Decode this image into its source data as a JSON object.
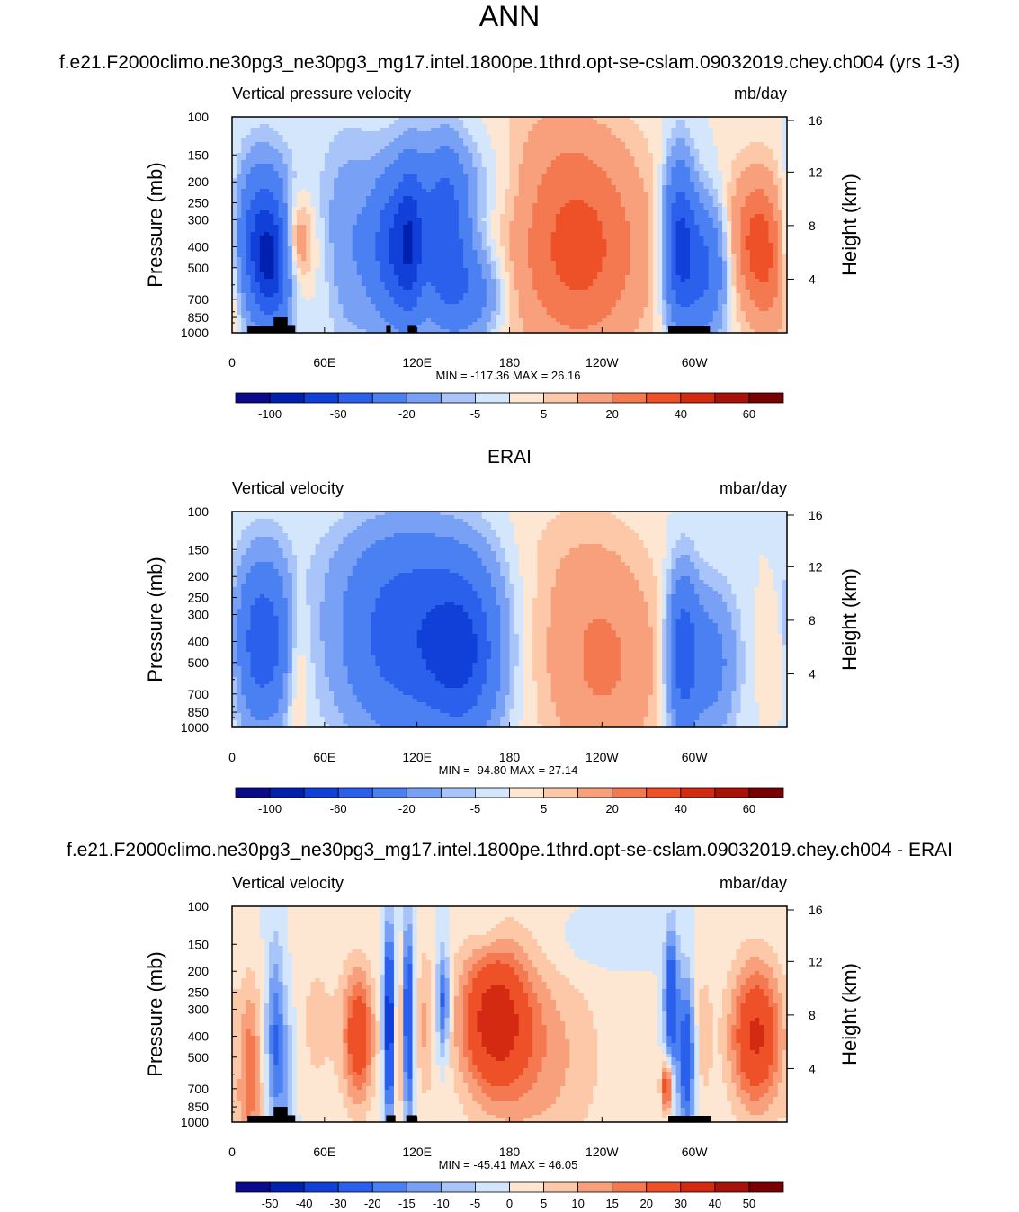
{
  "page_title": "ANN",
  "case_title": "f.e21.F2000climo.ne30pg3_ne30pg3_mg17.intel.1800pe.1thrd.opt-se-cslam.09032019.chey.ch004 (yrs 1-3)",
  "colors": {
    "cmap": [
      "#0a0a8a",
      "#0020b0",
      "#1040d8",
      "#2a60ec",
      "#4a80f2",
      "#78a0f4",
      "#a8c4f8",
      "#d4e6fb",
      "#fde6d2",
      "#fcc8a8",
      "#f8a07c",
      "#f47850",
      "#ee5028",
      "#d42a12",
      "#a81208",
      "#780000"
    ],
    "land": "#000000"
  },
  "chart_data": [
    {
      "type": "heatmap",
      "name": "model",
      "left_title": "Vertical pressure velocity",
      "units": "mb/day",
      "ylabel": "Pressure (mb)",
      "ylabel_right": "Height (km)",
      "x_ticks": [
        "0",
        "60E",
        "120E",
        "180",
        "120W",
        "60W"
      ],
      "x_tick_values": [
        0,
        60,
        120,
        180,
        240,
        300
      ],
      "xlim": [
        0,
        360
      ],
      "y_ticks": [
        "100",
        "150",
        "200",
        "250",
        "300",
        "400",
        "500",
        "700",
        "850",
        "1000"
      ],
      "y_tick_values": [
        100,
        150,
        200,
        250,
        300,
        400,
        500,
        700,
        850,
        1000
      ],
      "ylim": [
        100,
        1000
      ],
      "y_scale": "log",
      "height_ticks": [
        "16",
        "12",
        "8",
        "4"
      ],
      "height_tick_values": [
        16,
        12,
        8,
        4
      ],
      "min_label": "MIN = -117.36",
      "max_label": "MAX =  26.16",
      "colorbar_labels": [
        "-100",
        "-60",
        "-20",
        "-5",
        "5",
        "20",
        "40",
        "60"
      ],
      "colorbar_levels": [
        -100,
        -80,
        -60,
        -40,
        -20,
        -10,
        -5,
        0,
        5,
        10,
        20,
        30,
        40,
        50,
        60
      ],
      "features": [
        {
          "lon": 20,
          "plev": 380,
          "amp": -65,
          "sx": 13,
          "sy": 0.55
        },
        {
          "lon": 27,
          "plev": 500,
          "amp": -40,
          "sx": 8,
          "sy": 0.4
        },
        {
          "lon": 40,
          "plev": 380,
          "amp": 32,
          "sx": 8,
          "sy": 0.35
        },
        {
          "lon": 62,
          "plev": 500,
          "amp": 8,
          "sx": 12,
          "sy": 0.6
        },
        {
          "lon": 75,
          "plev": 400,
          "amp": -22,
          "sx": 15,
          "sy": 0.75
        },
        {
          "lon": 105,
          "plev": 400,
          "amp": -55,
          "sx": 10,
          "sy": 0.55
        },
        {
          "lon": 116,
          "plev": 380,
          "amp": -45,
          "sx": 6,
          "sy": 0.6
        },
        {
          "lon": 137,
          "plev": 350,
          "amp": -55,
          "sx": 11,
          "sy": 0.6
        },
        {
          "lon": 155,
          "plev": 650,
          "amp": -30,
          "sx": 14,
          "sy": 0.35
        },
        {
          "lon": 158,
          "plev": 200,
          "amp": -10,
          "sx": 25,
          "sy": 0.4
        },
        {
          "lon": 225,
          "plev": 420,
          "amp": 34,
          "sx": 32,
          "sy": 0.8
        },
        {
          "lon": 205,
          "plev": 150,
          "amp": 7,
          "sx": 30,
          "sy": 0.5
        },
        {
          "lon": 290,
          "plev": 380,
          "amp": -60,
          "sx": 7,
          "sy": 0.6
        },
        {
          "lon": 306,
          "plev": 500,
          "amp": -45,
          "sx": 11,
          "sy": 0.5
        },
        {
          "lon": 340,
          "plev": 380,
          "amp": 32,
          "sx": 14,
          "sy": 0.55
        },
        {
          "lon": 352,
          "plev": 600,
          "amp": 12,
          "sx": 10,
          "sy": 0.6
        }
      ],
      "land": [
        {
          "x0": 10,
          "x1": 30,
          "p0": 935,
          "p1": 1000
        },
        {
          "x0": 27,
          "x1": 36,
          "p0": 850,
          "p1": 1000
        },
        {
          "x0": 33,
          "x1": 41,
          "p0": 930,
          "p1": 1000
        },
        {
          "x0": 100,
          "x1": 103,
          "p0": 930,
          "p1": 1000
        },
        {
          "x0": 114,
          "x1": 119,
          "p0": 930,
          "p1": 1000
        },
        {
          "x0": 283,
          "x1": 310,
          "p0": 935,
          "p1": 1000
        }
      ]
    },
    {
      "type": "heatmap",
      "name": "obs",
      "title": "ERAI",
      "left_title": "Vertical velocity",
      "units": "mbar/day",
      "ylabel": "Pressure (mb)",
      "ylabel_right": "Height (km)",
      "x_ticks": [
        "0",
        "60E",
        "120E",
        "180",
        "120W",
        "60W"
      ],
      "x_tick_values": [
        0,
        60,
        120,
        180,
        240,
        300
      ],
      "xlim": [
        0,
        360
      ],
      "y_ticks": [
        "100",
        "150",
        "200",
        "250",
        "300",
        "400",
        "500",
        "700",
        "850",
        "1000"
      ],
      "y_tick_values": [
        100,
        150,
        200,
        250,
        300,
        400,
        500,
        700,
        850,
        1000
      ],
      "ylim": [
        100,
        1000
      ],
      "y_scale": "log",
      "height_ticks": [
        "16",
        "12",
        "8",
        "4"
      ],
      "height_tick_values": [
        16,
        12,
        8,
        4
      ],
      "min_label": "MIN = -94.80",
      "max_label": "MAX =  27.14",
      "colorbar_labels": [
        "-100",
        "-60",
        "-20",
        "-5",
        "5",
        "20",
        "40",
        "60"
      ],
      "colorbar_levels": [
        -100,
        -80,
        -60,
        -40,
        -20,
        -10,
        -5,
        0,
        5,
        10,
        20,
        30,
        40,
        50,
        60
      ],
      "features": [
        {
          "lon": 20,
          "plev": 400,
          "amp": -55,
          "sx": 13,
          "sy": 0.6
        },
        {
          "lon": 42,
          "plev": 500,
          "amp": 14,
          "sx": 6,
          "sy": 0.6
        },
        {
          "lon": 110,
          "plev": 400,
          "amp": -50,
          "sx": 28,
          "sy": 0.7
        },
        {
          "lon": 150,
          "plev": 450,
          "amp": -55,
          "sx": 17,
          "sy": 0.6
        },
        {
          "lon": 120,
          "plev": 180,
          "amp": -10,
          "sx": 40,
          "sy": 0.4
        },
        {
          "lon": 240,
          "plev": 500,
          "amp": 22,
          "sx": 28,
          "sy": 0.8
        },
        {
          "lon": 215,
          "plev": 160,
          "amp": 5,
          "sx": 30,
          "sy": 0.5
        },
        {
          "lon": 292,
          "plev": 450,
          "amp": -50,
          "sx": 7,
          "sy": 0.6
        },
        {
          "lon": 310,
          "plev": 500,
          "amp": -28,
          "sx": 12,
          "sy": 0.55
        },
        {
          "lon": 355,
          "plev": 450,
          "amp": 10,
          "sx": 8,
          "sy": 0.5
        }
      ],
      "land": []
    },
    {
      "type": "heatmap",
      "name": "diff",
      "title": "f.e21.F2000climo.ne30pg3_ne30pg3_mg17.intel.1800pe.1thrd.opt-se-cslam.09032019.chey.ch004 - ERAI",
      "left_title": "Vertical velocity",
      "units": "mbar/day",
      "ylabel": "Pressure (mb)",
      "ylabel_right": "Height (km)",
      "x_ticks": [
        "0",
        "60E",
        "120E",
        "180",
        "120W",
        "60W"
      ],
      "x_tick_values": [
        0,
        60,
        120,
        180,
        240,
        300
      ],
      "xlim": [
        0,
        360
      ],
      "y_ticks": [
        "100",
        "150",
        "200",
        "250",
        "300",
        "400",
        "500",
        "700",
        "850",
        "1000"
      ],
      "y_tick_values": [
        100,
        150,
        200,
        250,
        300,
        400,
        500,
        700,
        850,
        1000
      ],
      "ylim": [
        100,
        1000
      ],
      "y_scale": "log",
      "height_ticks": [
        "16",
        "12",
        "8",
        "4"
      ],
      "height_tick_values": [
        16,
        12,
        8,
        4
      ],
      "min_label": "MIN = -45.41",
      "max_label": "MAX =  46.05",
      "colorbar_labels": [
        "-50",
        "-40",
        "-30",
        "-20",
        "-15",
        "-10",
        "-5",
        "0",
        "5",
        "10",
        "15",
        "20",
        "30",
        "40",
        "50"
      ],
      "colorbar_levels": [
        -50,
        -40,
        -30,
        -20,
        -15,
        -10,
        -5,
        0,
        5,
        10,
        15,
        20,
        30,
        40,
        50
      ],
      "features": [
        {
          "lon": 12,
          "plev": 500,
          "amp": 16,
          "sx": 5,
          "sy": 0.6
        },
        {
          "lon": 28,
          "plev": 400,
          "amp": -18,
          "sx": 4,
          "sy": 0.7
        },
        {
          "lon": 35,
          "plev": 600,
          "amp": -10,
          "sx": 5,
          "sy": 0.6
        },
        {
          "lon": 55,
          "plev": 350,
          "amp": 6,
          "sx": 12,
          "sy": 0.8
        },
        {
          "lon": 82,
          "plev": 400,
          "amp": 28,
          "sx": 7,
          "sy": 0.5
        },
        {
          "lon": 102,
          "plev": 350,
          "amp": -40,
          "sx": 2.5,
          "sy": 0.7
        },
        {
          "lon": 110,
          "plev": 400,
          "amp": 18,
          "sx": 3,
          "sy": 0.6
        },
        {
          "lon": 114,
          "plev": 350,
          "amp": -40,
          "sx": 2.5,
          "sy": 0.7
        },
        {
          "lon": 125,
          "plev": 350,
          "amp": 10,
          "sx": 4,
          "sy": 0.6
        },
        {
          "lon": 137,
          "plev": 280,
          "amp": -25,
          "sx": 3,
          "sy": 0.4
        },
        {
          "lon": 170,
          "plev": 330,
          "amp": 32,
          "sx": 16,
          "sy": 0.55
        },
        {
          "lon": 200,
          "plev": 500,
          "amp": 12,
          "sx": 28,
          "sy": 0.8
        },
        {
          "lon": 165,
          "plev": 130,
          "amp": -4,
          "sx": 8,
          "sy": 0.2
        },
        {
          "lon": 230,
          "plev": 150,
          "amp": -4,
          "sx": 20,
          "sy": 0.25
        },
        {
          "lon": 285,
          "plev": 270,
          "amp": -32,
          "sx": 3,
          "sy": 0.5
        },
        {
          "lon": 295,
          "plev": 500,
          "amp": -28,
          "sx": 4,
          "sy": 0.6
        },
        {
          "lon": 282,
          "plev": 680,
          "amp": 28,
          "sx": 2.5,
          "sy": 0.2
        },
        {
          "lon": 305,
          "plev": 400,
          "amp": 8,
          "sx": 5,
          "sy": 0.6
        },
        {
          "lon": 340,
          "plev": 400,
          "amp": 32,
          "sx": 12,
          "sy": 0.55
        },
        {
          "lon": 10,
          "plev": 900,
          "amp": 6,
          "sx": 8,
          "sy": 0.3
        }
      ],
      "land": [
        {
          "x0": 10,
          "x1": 30,
          "p0": 935,
          "p1": 1000
        },
        {
          "x0": 27,
          "x1": 36,
          "p0": 850,
          "p1": 1000
        },
        {
          "x0": 33,
          "x1": 41,
          "p0": 930,
          "p1": 1000
        },
        {
          "x0": 100,
          "x1": 106,
          "p0": 930,
          "p1": 1000
        },
        {
          "x0": 113,
          "x1": 120,
          "p0": 930,
          "p1": 1000
        },
        {
          "x0": 283,
          "x1": 311,
          "p0": 935,
          "p1": 1000
        }
      ]
    }
  ]
}
